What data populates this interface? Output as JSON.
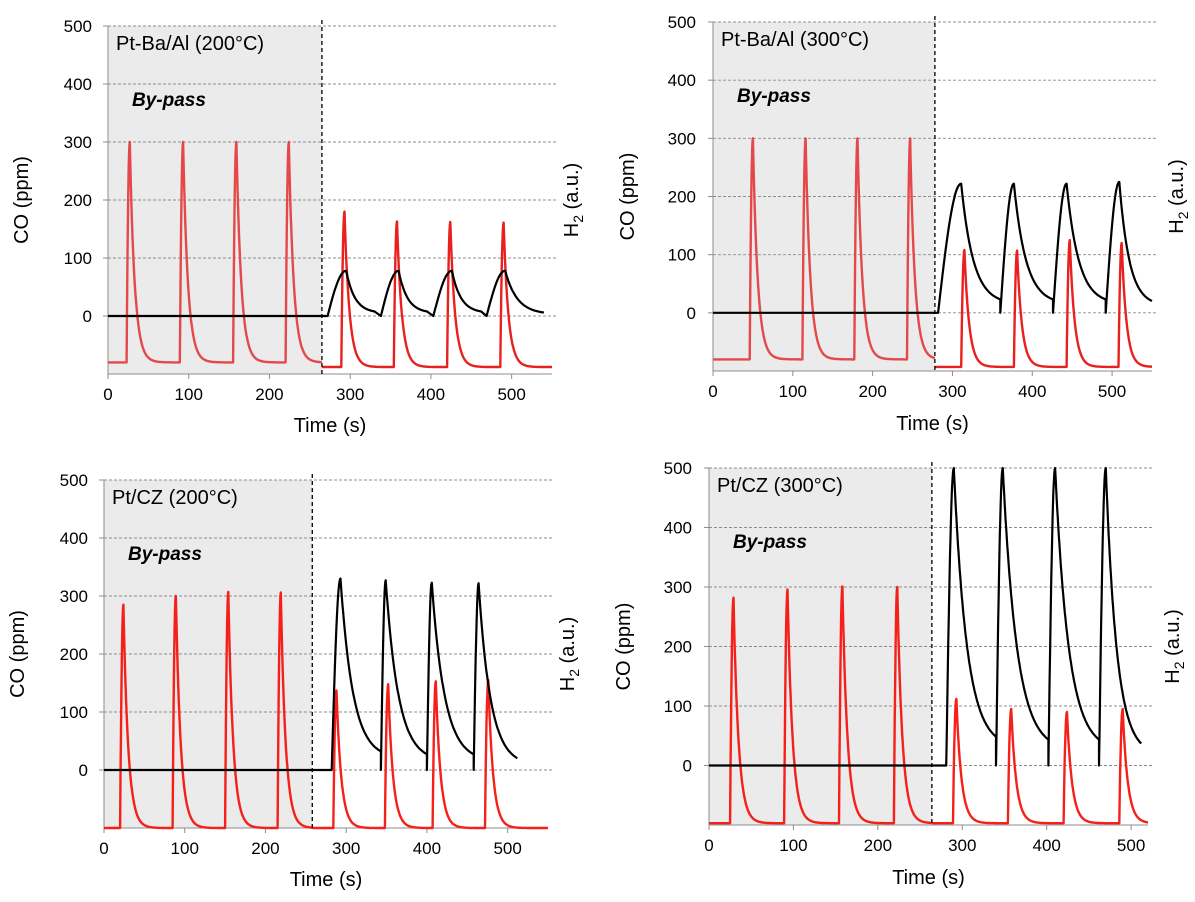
{
  "figure": {
    "panel_order": [
      "Pt-Ba/Al 200",
      "Pt-Ba/Al 300",
      "Pt/CZ 200",
      "Pt/CZ 300"
    ]
  },
  "chart_data": [
    {
      "type": "line",
      "title": "Pt-Ba/Al (200°C)",
      "annotation": "By-pass",
      "xlabel": "Time (s)",
      "ylabel": "CO (ppm)",
      "y2label_main": "H",
      "y2label_sub": "2",
      "y2label_rest": " (a.u.)",
      "xlim": [
        0,
        550
      ],
      "ylim": [
        -100,
        500
      ],
      "xticks": [
        0,
        100,
        200,
        300,
        400,
        500
      ],
      "yticks": [
        0,
        100,
        200,
        300,
        400,
        500
      ],
      "grid": true,
      "bypass_end": 265,
      "colors": {
        "co": "#e8211e",
        "co_bypass": "#e5484a",
        "h2": "#000000",
        "shade": "#ebebeb"
      },
      "co_bypass_peaks": [
        {
          "t": 27,
          "h": 300
        },
        {
          "t": 93,
          "h": 300
        },
        {
          "t": 159,
          "h": 300
        },
        {
          "t": 224,
          "h": 300
        }
      ],
      "co_peaks": [
        {
          "t": 293,
          "h": 180
        },
        {
          "t": 358,
          "h": 163
        },
        {
          "t": 424,
          "h": 162
        },
        {
          "t": 490,
          "h": 161
        }
      ],
      "h2_pulses": [
        {
          "start": 272,
          "peak": 295,
          "height": 78,
          "end": 330,
          "decay_to": 5
        },
        {
          "start": 338,
          "peak": 360,
          "height": 78,
          "end": 395,
          "decay_to": 5
        },
        {
          "start": 403,
          "peak": 426,
          "height": 78,
          "end": 462,
          "decay_to": 5
        },
        {
          "start": 469,
          "peak": 492,
          "height": 78,
          "end": 540,
          "decay_to": 3
        }
      ],
      "baseline": -80,
      "baseline_after": -88
    },
    {
      "type": "line",
      "title": "Pt-Ba/Al (300°C)",
      "annotation": "By-pass",
      "xlabel": "Time (s)",
      "ylabel": "CO (ppm)",
      "y2label_main": "H",
      "y2label_sub": "2",
      "y2label_rest": " (a.u.)",
      "xlim": [
        0,
        550
      ],
      "ylim": [
        -100,
        500
      ],
      "xticks": [
        0,
        100,
        200,
        300,
        400,
        500
      ],
      "yticks": [
        0,
        100,
        200,
        300,
        400,
        500
      ],
      "grid": true,
      "bypass_end": 278,
      "colors": {
        "co": "#e8211e",
        "co_bypass": "#e5484a",
        "h2": "#000000",
        "shade": "#ebebeb"
      },
      "co_bypass_peaks": [
        {
          "t": 50,
          "h": 300
        },
        {
          "t": 116,
          "h": 300
        },
        {
          "t": 181,
          "h": 300
        },
        {
          "t": 247,
          "h": 300
        }
      ],
      "co_peaks": [
        {
          "t": 315,
          "h": 108
        },
        {
          "t": 381,
          "h": 107
        },
        {
          "t": 447,
          "h": 125
        },
        {
          "t": 512,
          "h": 120
        }
      ],
      "h2_pulses": [
        {
          "start": 282,
          "peak": 311,
          "height": 222,
          "end": 360,
          "decay_to": 15
        },
        {
          "start": 360,
          "peak": 377,
          "height": 222,
          "end": 426,
          "decay_to": 15
        },
        {
          "start": 426,
          "peak": 443,
          "height": 222,
          "end": 492,
          "decay_to": 15
        },
        {
          "start": 492,
          "peak": 509,
          "height": 225,
          "end": 550,
          "decay_to": 12
        }
      ],
      "baseline": -80,
      "baseline_after": -93
    },
    {
      "type": "line",
      "title": "Pt/CZ (200°C)",
      "annotation": "By-pass",
      "xlabel": "Time (s)",
      "ylabel": "CO (ppm)",
      "y2label_main": "H",
      "y2label_sub": "2",
      "y2label_rest": " (a.u.)",
      "xlim": [
        0,
        550
      ],
      "ylim": [
        -100,
        500
      ],
      "xticks": [
        0,
        100,
        200,
        300,
        400,
        500
      ],
      "yticks": [
        0,
        100,
        200,
        300,
        400,
        500
      ],
      "grid": true,
      "bypass_end": 258,
      "colors": {
        "co": "#f5201a",
        "co_bypass": "#f5201a",
        "h2": "#000000",
        "shade": "#ebebeb"
      },
      "co_bypass_peaks": [
        {
          "t": 24,
          "h": 285
        },
        {
          "t": 89,
          "h": 300
        },
        {
          "t": 154,
          "h": 307
        },
        {
          "t": 219,
          "h": 306
        }
      ],
      "co_peaks": [
        {
          "t": 288,
          "h": 137
        },
        {
          "t": 352,
          "h": 148
        },
        {
          "t": 411,
          "h": 153
        },
        {
          "t": 476,
          "h": 155
        }
      ],
      "h2_pulses": [
        {
          "start": 282,
          "peak": 293,
          "height": 330,
          "end": 343,
          "decay_to": 20
        },
        {
          "start": 343,
          "peak": 349,
          "height": 327,
          "end": 400,
          "decay_to": 15
        },
        {
          "start": 400,
          "peak": 406,
          "height": 323,
          "end": 458,
          "decay_to": 15
        },
        {
          "start": 458,
          "peak": 464,
          "height": 322,
          "end": 512,
          "decay_to": 8
        }
      ],
      "baseline": -100,
      "baseline_after": -100
    },
    {
      "type": "line",
      "title": "Pt/CZ (300°C)",
      "annotation": "By-pass",
      "xlabel": "Time (s)",
      "ylabel": "CO (ppm)",
      "y2label_main": "H",
      "y2label_sub": "2",
      "y2label_rest": " (a.u.)",
      "xlim": [
        0,
        520
      ],
      "ylim": [
        -100,
        500
      ],
      "xticks": [
        0,
        100,
        200,
        300,
        400,
        500
      ],
      "yticks": [
        0,
        100,
        200,
        300,
        400,
        500
      ],
      "grid": true,
      "bypass_end": 264,
      "colors": {
        "co": "#f5201a",
        "co_bypass": "#f5201a",
        "h2": "#000000",
        "shade": "#ebebeb"
      },
      "co_bypass_peaks": [
        {
          "t": 29,
          "h": 282
        },
        {
          "t": 93,
          "h": 296
        },
        {
          "t": 158,
          "h": 301
        },
        {
          "t": 223,
          "h": 300
        }
      ],
      "co_peaks": [
        {
          "t": 293,
          "h": 112
        },
        {
          "t": 358,
          "h": 95
        },
        {
          "t": 424,
          "h": 90
        },
        {
          "t": 490,
          "h": 95
        }
      ],
      "h2_pulses": [
        {
          "start": 281,
          "peak": 290,
          "height": 500,
          "end": 340,
          "decay_to": 30
        },
        {
          "start": 340,
          "peak": 348,
          "height": 500,
          "end": 402,
          "decay_to": 25
        },
        {
          "start": 402,
          "peak": 410,
          "height": 500,
          "end": 462,
          "decay_to": 25
        },
        {
          "start": 462,
          "peak": 470,
          "height": 500,
          "end": 512,
          "decay_to": 18
        }
      ],
      "baseline": -97,
      "baseline_after": -97
    }
  ]
}
